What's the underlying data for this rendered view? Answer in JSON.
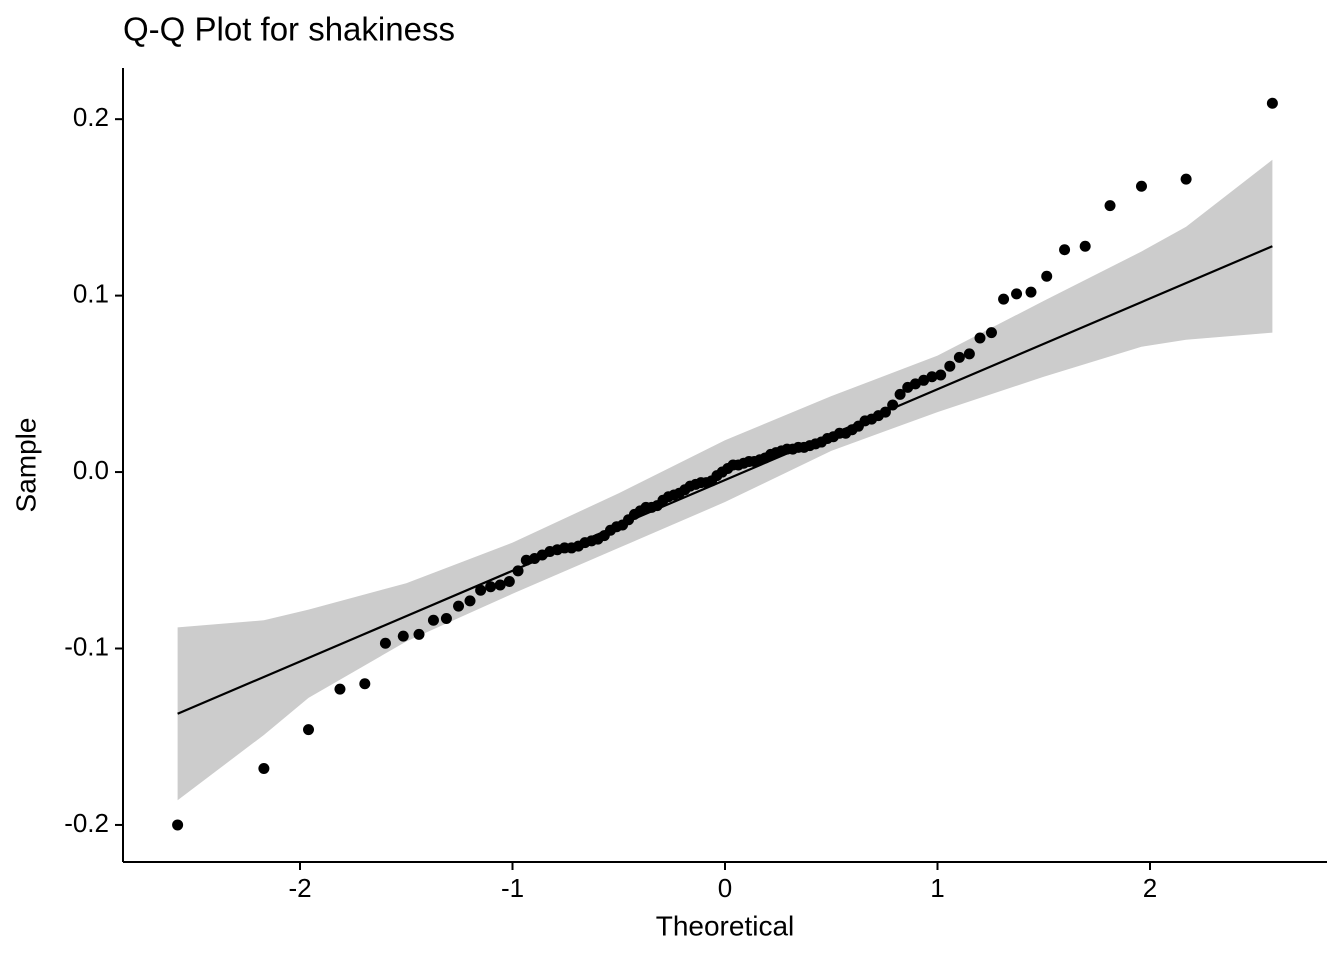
{
  "chart_data": {
    "type": "scatter",
    "title": "Q-Q Plot for shakiness",
    "x_label": "Theoretical",
    "y_label": "Sample",
    "xlim": [
      -2.833,
      2.833
    ],
    "ylim": [
      -0.221,
      0.229
    ],
    "xticks": [
      -2,
      -1,
      0,
      1,
      2
    ],
    "yticks": [
      -0.2,
      -0.1,
      {
        "value": 0,
        "label": "0.0"
      },
      0.1,
      0.2
    ],
    "color": "#000000",
    "x": [
      -2.576,
      -2.17,
      -1.96,
      -1.812,
      -1.695,
      -1.598,
      -1.514,
      -1.44,
      -1.372,
      -1.311,
      -1.254,
      -1.2,
      -1.15,
      -1.103,
      -1.058,
      -1.015,
      -0.974,
      -0.935,
      -0.896,
      -0.86,
      -0.824,
      -0.789,
      -0.755,
      -0.722,
      -0.69,
      -0.659,
      -0.628,
      -0.598,
      -0.568,
      -0.539,
      -0.51,
      -0.482,
      -0.454,
      -0.426,
      -0.399,
      -0.372,
      -0.345,
      -0.319,
      -0.292,
      -0.266,
      -0.24,
      -0.215,
      -0.189,
      -0.164,
      -0.138,
      -0.113,
      -0.088,
      -0.063,
      -0.038,
      -0.013,
      0.013,
      0.038,
      0.063,
      0.088,
      0.113,
      0.138,
      0.164,
      0.189,
      0.215,
      0.24,
      0.266,
      0.292,
      0.319,
      0.345,
      0.372,
      0.399,
      0.426,
      0.454,
      0.482,
      0.51,
      0.539,
      0.568,
      0.598,
      0.628,
      0.659,
      0.69,
      0.722,
      0.755,
      0.789,
      0.824,
      0.86,
      0.896,
      0.935,
      0.974,
      1.015,
      1.058,
      1.103,
      1.15,
      1.2,
      1.254,
      1.311,
      1.372,
      1.44,
      1.514,
      1.598,
      1.695,
      1.812,
      1.96,
      2.17,
      2.576
    ],
    "values": [
      -0.2,
      -0.168,
      -0.146,
      -0.123,
      -0.12,
      -0.097,
      -0.093,
      -0.092,
      -0.084,
      -0.083,
      -0.076,
      -0.073,
      -0.067,
      -0.065,
      -0.064,
      -0.062,
      -0.056,
      -0.05,
      -0.049,
      -0.047,
      -0.045,
      -0.044,
      -0.043,
      -0.043,
      -0.042,
      -0.04,
      -0.039,
      -0.038,
      -0.036,
      -0.033,
      -0.031,
      -0.03,
      -0.027,
      -0.024,
      -0.022,
      -0.02,
      -0.02,
      -0.019,
      -0.016,
      -0.014,
      -0.013,
      -0.012,
      -0.01,
      -0.008,
      -0.007,
      -0.006,
      -0.006,
      -0.005,
      -0.002,
      0.0,
      0.002,
      0.004,
      0.004,
      0.005,
      0.006,
      0.006,
      0.007,
      0.008,
      0.01,
      0.011,
      0.012,
      0.013,
      0.013,
      0.014,
      0.014,
      0.015,
      0.016,
      0.017,
      0.019,
      0.02,
      0.022,
      0.022,
      0.024,
      0.026,
      0.029,
      0.03,
      0.032,
      0.034,
      0.038,
      0.044,
      0.048,
      0.05,
      0.052,
      0.054,
      0.055,
      0.06,
      0.065,
      0.067,
      0.076,
      0.079,
      0.098,
      0.101,
      0.102,
      0.111,
      0.126,
      0.128,
      0.151,
      0.162,
      0.166,
      0.209
    ],
    "reference_line": {
      "color": "#000000",
      "x": [
        -2.576,
        2.576
      ],
      "values": [
        -0.137,
        0.128
      ]
    },
    "band": {
      "color": "#cccccc",
      "x": [
        -2.576,
        -2.17,
        -1.96,
        -1.5,
        -1.0,
        -0.5,
        0,
        0.5,
        1.0,
        1.5,
        1.96,
        2.17,
        2.576
      ],
      "upper": [
        -0.088,
        -0.084,
        -0.078,
        -0.063,
        -0.04,
        -0.012,
        0.018,
        0.043,
        0.066,
        0.097,
        0.125,
        0.139,
        0.177
      ],
      "lower": [
        -0.186,
        -0.149,
        -0.128,
        -0.096,
        -0.069,
        -0.043,
        -0.017,
        0.012,
        0.034,
        0.054,
        0.071,
        0.075,
        0.079
      ]
    }
  }
}
